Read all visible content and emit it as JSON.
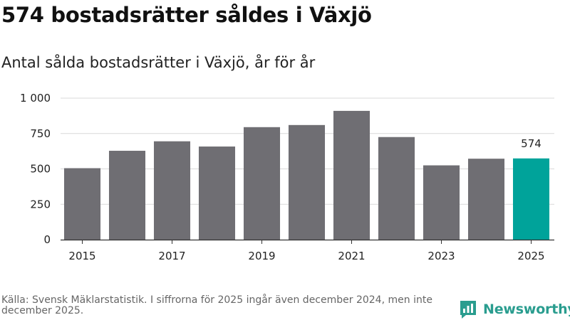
{
  "title": "574 bostadsrätter såldes i Växjö",
  "subtitle": "Antal sålda bostadsrätter i Växjö, år för år",
  "source": "Källa: Svensk Mäklarstatistik. I siffrorna för 2025 ingår även december 2024, men inte december 2025.",
  "brand": "Newsworthy",
  "colors": {
    "bar": "#6f6e73",
    "highlight": "#00a39a",
    "grid": "#d9d9d9",
    "axis": "#333333",
    "brand": "#2a9d8f"
  },
  "chart_data": {
    "type": "bar",
    "title": "574 bostadsrätter såldes i Växjö",
    "subtitle": "Antal sålda bostadsrätter i Växjö, år för år",
    "categories": [
      "2015",
      "2016",
      "2017",
      "2018",
      "2019",
      "2020",
      "2021",
      "2022",
      "2023",
      "2024",
      "2025"
    ],
    "values": [
      505,
      628,
      695,
      658,
      795,
      810,
      910,
      725,
      525,
      572,
      574
    ],
    "highlight_index": 10,
    "x_tick_labels": [
      "2015",
      "2017",
      "2019",
      "2021",
      "2023",
      "2025"
    ],
    "y_ticks": [
      0,
      250,
      500,
      750,
      1000
    ],
    "y_tick_labels": [
      "0",
      "250",
      "500",
      "750",
      "1 000"
    ],
    "ylim": [
      0,
      1000
    ],
    "grid": true,
    "data_labels": [
      {
        "index": 10,
        "text": "574"
      }
    ],
    "xlabel": "",
    "ylabel": ""
  }
}
